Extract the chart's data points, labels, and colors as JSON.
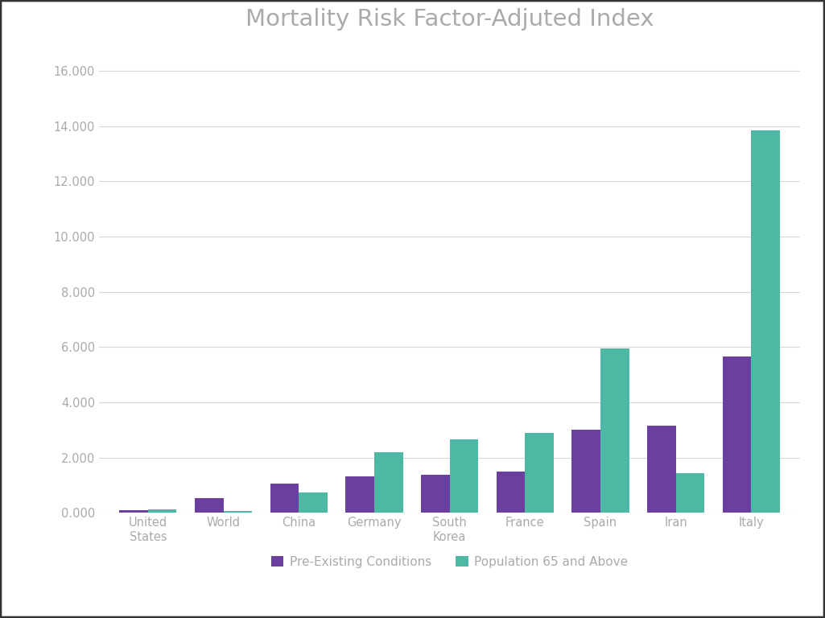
{
  "title": "Mortality Risk Factor-Adjuted Index",
  "categories": [
    "United\nStates",
    "World",
    "China",
    "Germany",
    "South\nKorea",
    "France",
    "Spain",
    "Iran",
    "Italy"
  ],
  "pre_existing": [
    100,
    550,
    1050,
    1320,
    1380,
    1500,
    3000,
    3150,
    5650
  ],
  "population_65": [
    120,
    80,
    750,
    2200,
    2650,
    2900,
    5950,
    1430,
    13850
  ],
  "bar_color_pre": "#6b3fa0",
  "bar_color_pop": "#4db8a4",
  "legend_pre": "Pre-Existing Conditions",
  "legend_pop": "Population 65 and Above",
  "ylim": [
    0,
    17000
  ],
  "yticks": [
    0,
    2000,
    4000,
    6000,
    8000,
    10000,
    12000,
    14000,
    16000
  ],
  "ytick_labels": [
    "0.000",
    "2.000",
    "4.000",
    "6.000",
    "8.000",
    "10.000",
    "12.000",
    "14.000",
    "16.000"
  ],
  "background_color": "#ffffff",
  "border_color": "#333333",
  "grid_color": "#d8d8d8",
  "title_fontsize": 21,
  "tick_fontsize": 10.5,
  "legend_fontsize": 11,
  "title_color": "#aaaaaa",
  "tick_color": "#aaaaaa"
}
